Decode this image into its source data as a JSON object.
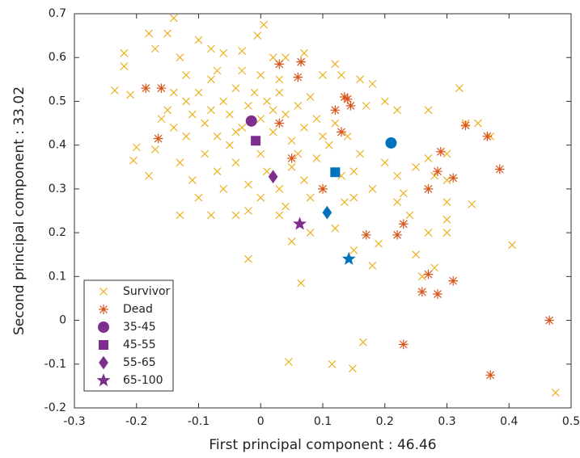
{
  "chart_data": {
    "type": "scatter",
    "xlabel": "First principal component : 46.46",
    "ylabel": "Second principal component : 33.02",
    "xlim": [
      -0.3,
      0.5
    ],
    "xticks": [
      -0.3,
      -0.2,
      -0.1,
      0,
      0.1,
      0.2,
      0.3,
      0.4,
      0.5
    ],
    "ylim": [
      -0.2,
      0.7
    ],
    "yticks": [
      -0.2,
      -0.1,
      0,
      0.1,
      0.2,
      0.3,
      0.4,
      0.5,
      0.6,
      0.7
    ],
    "legend": "lower left",
    "series": [
      {
        "name": "Survivor",
        "marker": "x",
        "color": "#EDB120",
        "x": [
          -0.235,
          -0.22,
          -0.22,
          -0.21,
          -0.2,
          -0.205,
          -0.18,
          -0.17,
          -0.15,
          -0.14,
          -0.13,
          -0.17,
          -0.18,
          -0.12,
          -0.1,
          -0.08,
          -0.06,
          -0.03,
          0.005,
          -0.005,
          0.02,
          0.04,
          0.07,
          0.1,
          0.12,
          0.13,
          0.16,
          0.18,
          0.17,
          0.2,
          0.22,
          0.27,
          0.32,
          0.33,
          0.35,
          0.37,
          0.3,
          0.27,
          0.25,
          0.28,
          0.3,
          0.3,
          0.3,
          0.3,
          0.34,
          0.405,
          0.27,
          0.26,
          0.28,
          0.25,
          0.18,
          0.19,
          0.15,
          0.12,
          0.135,
          0.15,
          0.18,
          0.22,
          0.2,
          0.065,
          -0.02,
          0.045,
          0.115,
          0.148,
          0.165,
          0.475,
          -0.13,
          -0.08,
          -0.04,
          -0.02,
          0.03,
          0.05,
          0.08,
          0.1,
          0.22,
          0.24,
          0.23,
          -0.12,
          -0.11,
          -0.1,
          -0.09,
          -0.08,
          -0.07,
          -0.06,
          -0.05,
          -0.04,
          -0.03,
          -0.02,
          -0.01,
          0.0,
          0.01,
          0.02,
          0.03,
          0.04,
          0.05,
          0.06,
          0.07,
          0.08,
          0.09,
          0.1,
          0.11,
          -0.14,
          -0.15,
          -0.13,
          -0.11,
          -0.09,
          -0.07,
          -0.05,
          -0.04,
          -0.02,
          0.0,
          0.01,
          0.03,
          0.05,
          0.07,
          0.09,
          -0.06,
          -0.1,
          0.0,
          0.04,
          -0.03,
          -0.07,
          0.0,
          0.03,
          -0.12,
          -0.16,
          -0.14,
          0.06,
          0.08,
          -0.08,
          0.02,
          -0.04,
          0.12,
          0.14,
          0.16,
          0.15,
          0.13
        ],
        "values": [
          0.525,
          0.61,
          0.58,
          0.515,
          0.395,
          0.365,
          0.655,
          0.62,
          0.655,
          0.69,
          0.6,
          0.39,
          0.33,
          0.56,
          0.64,
          0.62,
          0.61,
          0.615,
          0.675,
          0.65,
          0.6,
          0.6,
          0.61,
          0.56,
          0.585,
          0.56,
          0.55,
          0.54,
          0.49,
          0.5,
          0.48,
          0.48,
          0.53,
          0.45,
          0.45,
          0.42,
          0.38,
          0.37,
          0.35,
          0.33,
          0.32,
          0.27,
          0.23,
          0.2,
          0.265,
          0.172,
          0.2,
          0.1,
          0.12,
          0.15,
          0.125,
          0.175,
          0.16,
          0.21,
          0.27,
          0.28,
          0.3,
          0.33,
          0.36,
          0.085,
          0.14,
          -0.095,
          -0.1,
          -0.11,
          -0.05,
          -0.165,
          0.24,
          0.24,
          0.24,
          0.25,
          0.24,
          0.18,
          0.2,
          0.3,
          0.27,
          0.24,
          0.29,
          0.5,
          0.47,
          0.52,
          0.45,
          0.55,
          0.42,
          0.5,
          0.47,
          0.53,
          0.44,
          0.49,
          0.52,
          0.46,
          0.5,
          0.43,
          0.52,
          0.47,
          0.41,
          0.49,
          0.44,
          0.51,
          0.46,
          0.42,
          0.4,
          0.44,
          0.48,
          0.36,
          0.32,
          0.38,
          0.34,
          0.4,
          0.36,
          0.31,
          0.38,
          0.34,
          0.3,
          0.35,
          0.32,
          0.37,
          0.3,
          0.28,
          0.28,
          0.26,
          0.57,
          0.57,
          0.56,
          0.55,
          0.42,
          0.46,
          0.52,
          0.38,
          0.28,
          0.48,
          0.48,
          0.43,
          0.45,
          0.42,
          0.38,
          0.34,
          0.33
        ]
      },
      {
        "name": "Dead",
        "marker": "asterisk",
        "color": "#D95319",
        "x": [
          -0.185,
          -0.16,
          -0.165,
          0.03,
          0.065,
          0.06,
          0.03,
          0.05,
          0.1,
          0.12,
          0.135,
          0.14,
          0.145,
          0.13,
          0.17,
          0.22,
          0.23,
          0.27,
          0.285,
          0.29,
          0.31,
          0.33,
          0.365,
          0.385,
          0.26,
          0.27,
          0.285,
          0.31,
          0.23,
          0.37,
          0.465
        ],
        "values": [
          0.53,
          0.53,
          0.415,
          0.585,
          0.59,
          0.555,
          0.45,
          0.37,
          0.3,
          0.48,
          0.51,
          0.505,
          0.49,
          0.43,
          0.195,
          0.195,
          0.22,
          0.3,
          0.34,
          0.385,
          0.325,
          0.445,
          0.42,
          0.345,
          0.065,
          0.105,
          0.06,
          0.09,
          -0.055,
          -0.125,
          0.0
        ]
      },
      {
        "name": "35-45",
        "marker": "circle",
        "colors": [
          "#7E2F8E",
          "#0072BD"
        ],
        "x": [
          -0.015,
          0.21
        ],
        "values": [
          0.455,
          0.405
        ]
      },
      {
        "name": "45-55",
        "marker": "square",
        "colors": [
          "#7E2F8E",
          "#0072BD"
        ],
        "x": [
          -0.008,
          0.12
        ],
        "values": [
          0.41,
          0.338
        ]
      },
      {
        "name": "55-65",
        "marker": "diamond",
        "colors": [
          "#7E2F8E",
          "#0072BD"
        ],
        "x": [
          0.02,
          0.107
        ],
        "values": [
          0.328,
          0.246
        ]
      },
      {
        "name": "65-100",
        "marker": "star",
        "colors": [
          "#7E2F8E",
          "#0072BD"
        ],
        "x": [
          0.063,
          0.142
        ],
        "values": [
          0.22,
          0.14
        ]
      }
    ]
  }
}
